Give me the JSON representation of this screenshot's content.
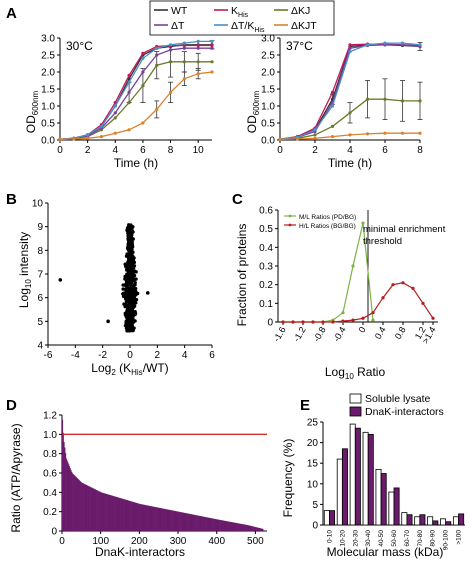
{
  "panels": {
    "A": {
      "letter": "A",
      "legend": [
        {
          "label": "WT",
          "sub": "",
          "color": "#333333"
        },
        {
          "label": "K",
          "sub": "His",
          "color": "#c2185b"
        },
        {
          "label": "ΔKJ",
          "sub": "",
          "color": "#6b7a2b"
        },
        {
          "label": "ΔT",
          "sub": "",
          "color": "#7b3fa0"
        },
        {
          "label": "ΔT/K",
          "sub": "His",
          "color": "#4a90c8"
        },
        {
          "label": "ΔKJT",
          "sub": "",
          "color": "#d9822b"
        }
      ],
      "ylabel_main": "OD",
      "ylabel_sub": "600nm",
      "xlabel": "Time (h)"
    },
    "B": {
      "letter": "B",
      "ylabel_pre": "Log",
      "ylabel_sub": "10",
      "ylabel_post": " intensity",
      "xlabel_pre": "Log",
      "xlabel_sub": "2",
      "xlabel_mid": " (K",
      "xlabel_sub2": "His",
      "xlabel_post": "/WT)"
    },
    "C": {
      "letter": "C",
      "ylabel": "Fraction of proteins",
      "xlabel_pre": "Log",
      "xlabel_sub": "10",
      "xlabel_post": " Ratio",
      "annotation": [
        "minimal enrichment",
        "threshold"
      ]
    },
    "D": {
      "letter": "D",
      "ylabel": "Ratio (ATP/Apyrase)",
      "xlabel": "DnaK-interactors"
    },
    "E": {
      "letter": "E",
      "ylabel": "Frequency (%)",
      "xlabel": "Molecular mass (kDa)"
    }
  },
  "chart_data": [
    {
      "panel": "A-left",
      "type": "line",
      "title": "30°C",
      "xlabel": "Time (h)",
      "ylabel": "OD600nm",
      "xlim": [
        0,
        11
      ],
      "ylim": [
        0,
        3.0
      ],
      "xticks": [
        "0",
        "2",
        "4",
        "6",
        "8",
        "10"
      ],
      "yticks": [
        "0.0",
        "0.5",
        "1.0",
        "1.5",
        "2.0",
        "2.5",
        "3.0"
      ],
      "series": [
        {
          "name": "WT",
          "color": "#333333",
          "x": [
            0,
            1,
            2,
            3,
            4,
            5,
            6,
            7,
            8,
            9,
            10,
            11
          ],
          "y": [
            0.02,
            0.05,
            0.15,
            0.4,
            1.0,
            1.8,
            2.5,
            2.7,
            2.75,
            2.8,
            2.8,
            2.8
          ]
        },
        {
          "name": "KHis",
          "color": "#c2185b",
          "x": [
            0,
            1,
            2,
            3,
            4,
            5,
            6,
            7,
            8,
            9,
            10,
            11
          ],
          "y": [
            0.02,
            0.05,
            0.15,
            0.45,
            1.1,
            1.9,
            2.55,
            2.75,
            2.78,
            2.78,
            2.78,
            2.78
          ]
        },
        {
          "name": "ΔKJ",
          "color": "#6b7a2b",
          "x": [
            0,
            1,
            2,
            3,
            4,
            5,
            6,
            7,
            8,
            9,
            10,
            11
          ],
          "y": [
            0.02,
            0.04,
            0.1,
            0.3,
            0.65,
            1.1,
            1.6,
            2.2,
            2.3,
            2.3,
            2.3,
            2.3
          ]
        },
        {
          "name": "ΔT",
          "color": "#7b3fa0",
          "x": [
            0,
            1,
            2,
            3,
            4,
            5,
            6,
            7,
            8,
            9,
            10,
            11
          ],
          "y": [
            0.02,
            0.05,
            0.12,
            0.35,
            0.8,
            1.4,
            2.0,
            2.5,
            2.65,
            2.7,
            2.7,
            2.7
          ]
        },
        {
          "name": "ΔT/KHis",
          "color": "#4a90c8",
          "x": [
            0,
            1,
            2,
            3,
            4,
            5,
            6,
            7,
            8,
            9,
            10,
            11
          ],
          "y": [
            0.02,
            0.05,
            0.15,
            0.4,
            1.0,
            1.7,
            2.4,
            2.7,
            2.8,
            2.85,
            2.9,
            2.9
          ]
        },
        {
          "name": "ΔKJT",
          "color": "#d9822b",
          "x": [
            0,
            1,
            2,
            3,
            4,
            5,
            6,
            7,
            8,
            9,
            10,
            11
          ],
          "y": [
            0.02,
            0.03,
            0.05,
            0.1,
            0.2,
            0.3,
            0.5,
            0.9,
            1.4,
            1.8,
            1.95,
            2.0
          ]
        }
      ],
      "errorbars": [
        {
          "x": 6,
          "y": 1.6,
          "err": 0.5
        },
        {
          "x": 7,
          "y": 2.2,
          "err": 0.4
        },
        {
          "x": 8,
          "y": 2.3,
          "err": 0.45
        },
        {
          "x": 9,
          "y": 2.3,
          "err": 0.3
        },
        {
          "x": 10,
          "y": 2.3,
          "err": 0.25
        },
        {
          "x": 7,
          "y": 0.9,
          "err": 0.25
        },
        {
          "x": 8,
          "y": 1.4,
          "err": 0.3
        },
        {
          "x": 9,
          "y": 1.8,
          "err": 0.2
        },
        {
          "x": 10,
          "y": 1.95,
          "err": 0.15
        },
        {
          "x": 5,
          "y": 1.4,
          "err": 0.3
        },
        {
          "x": 11,
          "y": 2.8,
          "err": 0.12
        }
      ]
    },
    {
      "panel": "A-right",
      "type": "line",
      "title": "37°C",
      "xlabel": "Time (h)",
      "ylabel": "OD600nm",
      "xlim": [
        0,
        8
      ],
      "ylim": [
        0,
        3.0
      ],
      "xticks": [
        "0",
        "2",
        "4",
        "6",
        "8"
      ],
      "yticks": [
        "0.0",
        "0.5",
        "1.0",
        "1.5",
        "2.0",
        "2.5",
        "3.0"
      ],
      "series": [
        {
          "name": "WT",
          "color": "#333333",
          "x": [
            0,
            1,
            2,
            3,
            4,
            5,
            6,
            7,
            8
          ],
          "y": [
            0.02,
            0.1,
            0.3,
            1.2,
            2.75,
            2.8,
            2.8,
            2.78,
            2.75
          ]
        },
        {
          "name": "KHis",
          "color": "#c2185b",
          "x": [
            0,
            1,
            2,
            3,
            4,
            5,
            6,
            7,
            8
          ],
          "y": [
            0.02,
            0.1,
            0.35,
            1.4,
            2.8,
            2.82,
            2.82,
            2.8,
            2.78
          ]
        },
        {
          "name": "ΔKJ",
          "color": "#6b7a2b",
          "x": [
            0,
            1,
            2,
            3,
            4,
            5,
            6,
            7,
            8
          ],
          "y": [
            0.02,
            0.05,
            0.15,
            0.4,
            0.8,
            1.2,
            1.2,
            1.15,
            1.15
          ]
        },
        {
          "name": "ΔT",
          "color": "#7b3fa0",
          "x": [
            0,
            1,
            2,
            3,
            4,
            5,
            6,
            7,
            8
          ],
          "y": [
            0.02,
            0.08,
            0.25,
            1.1,
            2.7,
            2.78,
            2.8,
            2.8,
            2.75
          ]
        },
        {
          "name": "ΔT/KHis",
          "color": "#4a90c8",
          "x": [
            0,
            1,
            2,
            3,
            4,
            5,
            6,
            7,
            8
          ],
          "y": [
            0.02,
            0.08,
            0.3,
            1.0,
            2.6,
            2.8,
            2.85,
            2.85,
            2.8
          ]
        },
        {
          "name": "ΔKJT",
          "color": "#d9822b",
          "x": [
            0,
            1,
            2,
            3,
            4,
            5,
            6,
            7,
            8
          ],
          "y": [
            0.02,
            0.03,
            0.05,
            0.1,
            0.15,
            0.18,
            0.2,
            0.2,
            0.2
          ]
        }
      ],
      "errorbars": [
        {
          "x": 4,
          "y": 0.8,
          "err": 0.3
        },
        {
          "x": 5,
          "y": 1.2,
          "err": 0.55
        },
        {
          "x": 6,
          "y": 1.2,
          "err": 0.6
        },
        {
          "x": 7,
          "y": 1.15,
          "err": 0.6
        },
        {
          "x": 8,
          "y": 1.15,
          "err": 0.55
        },
        {
          "x": 8,
          "y": 2.75,
          "err": 0.12
        },
        {
          "x": 3,
          "y": 1.2,
          "err": 0.15
        }
      ]
    },
    {
      "panel": "B",
      "type": "scatter",
      "xlabel": "Log2 (KHis/WT)",
      "ylabel": "Log10 intensity",
      "xlim": [
        -6,
        6
      ],
      "ylim": [
        4,
        10
      ],
      "xticks": [
        "-6",
        "-4",
        "-2",
        "0",
        "2",
        "4",
        "6"
      ],
      "yticks": [
        "4",
        "5",
        "6",
        "7",
        "8",
        "9",
        "10"
      ],
      "cluster": {
        "center_x": 0.0,
        "spread_x": 0.35,
        "y_min": 4.6,
        "y_max": 9.1
      },
      "outliers": [
        {
          "x": -5.1,
          "y": 6.75
        },
        {
          "x": -1.6,
          "y": 5.0
        },
        {
          "x": 1.3,
          "y": 6.2
        }
      ]
    },
    {
      "panel": "C",
      "type": "line",
      "xlabel": "Log10 Ratio",
      "ylabel": "Fraction of proteins",
      "ylim": [
        0,
        0.6
      ],
      "xticks": [
        "-1.6",
        "-1.2",
        "-0.8",
        "-0.4",
        "0",
        "0.4",
        "0.8",
        "1.2",
        ">1.4"
      ],
      "yticks": [
        "0",
        "0.1",
        "0.2",
        "0.3",
        "0.4",
        "0.5",
        "0.6"
      ],
      "threshold_x": 0.1,
      "series": [
        {
          "name": "M/L Ratios (PD/BG)",
          "color": "#7cb342",
          "x": [
            -1.6,
            -1.4,
            -1.2,
            -1.0,
            -0.8,
            -0.6,
            -0.4,
            -0.2,
            0,
            0.2
          ],
          "y": [
            0,
            0,
            0,
            0,
            0,
            0.01,
            0.05,
            0.3,
            0.53,
            0.01
          ]
        },
        {
          "name": "H/L Ratios (BG/BG)",
          "color": "#b71c1c",
          "x": [
            -1.6,
            -1.4,
            -1.2,
            -1.0,
            -0.8,
            -0.6,
            -0.4,
            -0.2,
            0,
            0.2,
            0.4,
            0.6,
            0.8,
            1.0,
            1.2,
            1.4
          ],
          "y": [
            0,
            0,
            0,
            0,
            0,
            0,
            0.005,
            0.01,
            0.02,
            0.05,
            0.13,
            0.2,
            0.21,
            0.18,
            0.1,
            0.02
          ]
        }
      ]
    },
    {
      "panel": "D",
      "type": "bar",
      "xlabel": "DnaK-interactors",
      "ylabel": "Ratio (ATP/Apyrase)",
      "xlim": [
        0,
        530
      ],
      "ylim": [
        0,
        1.2
      ],
      "xticks": [
        "0",
        "100",
        "200",
        "300",
        "400",
        "500"
      ],
      "yticks": [
        "0",
        "0.2",
        "0.4",
        "0.6",
        "0.8",
        "1.0",
        "1.2"
      ],
      "reference_line": 1.0,
      "color": "#6a1b6a",
      "n": 520,
      "profile": [
        {
          "x": 0,
          "y": 1.15
        },
        {
          "x": 3,
          "y": 0.95
        },
        {
          "x": 10,
          "y": 0.75
        },
        {
          "x": 25,
          "y": 0.6
        },
        {
          "x": 50,
          "y": 0.5
        },
        {
          "x": 100,
          "y": 0.4
        },
        {
          "x": 200,
          "y": 0.28
        },
        {
          "x": 300,
          "y": 0.2
        },
        {
          "x": 400,
          "y": 0.12
        },
        {
          "x": 480,
          "y": 0.06
        },
        {
          "x": 520,
          "y": 0.02
        }
      ]
    },
    {
      "panel": "E",
      "type": "bar",
      "xlabel": "Molecular mass (kDa)",
      "ylabel": "Frequency (%)",
      "ylim": [
        0,
        25
      ],
      "yticks": [
        "0",
        "5",
        "10",
        "15",
        "20",
        "25"
      ],
      "categories": [
        "0-10",
        "10-20",
        "20-30",
        "30-40",
        "40-50",
        "50-60",
        "60-70",
        "70-80",
        "80-90",
        "90-100",
        ">100"
      ],
      "series": [
        {
          "name": "Soluble lysate",
          "color": "#ffffff",
          "values": [
            3.5,
            16,
            24.5,
            22.5,
            13.5,
            8,
            3,
            2,
            2,
            1.5,
            2
          ]
        },
        {
          "name": "DnaK-interactors",
          "color": "#6a1b6a",
          "values": [
            3.5,
            18.5,
            23.5,
            22,
            12.5,
            9,
            2.5,
            2.5,
            1,
            0.8,
            2.7
          ]
        }
      ]
    }
  ]
}
